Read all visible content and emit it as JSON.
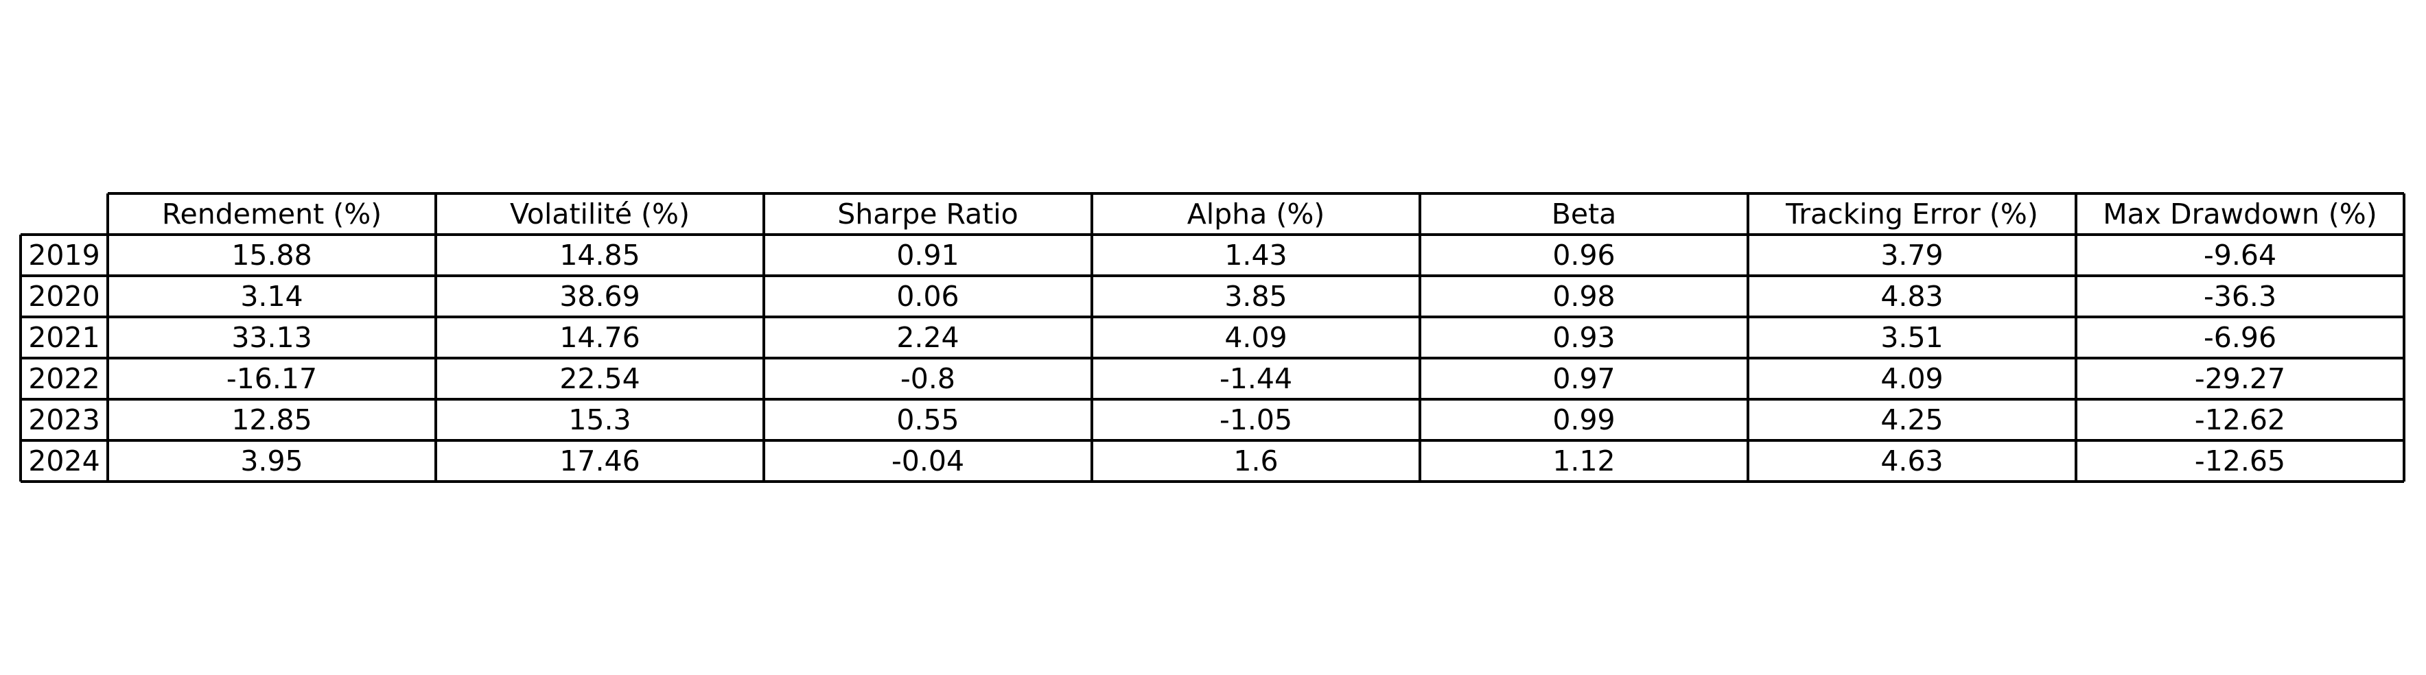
{
  "chart_data": {
    "type": "table",
    "columns": [
      "Rendement (%)",
      "Volatilité (%)",
      "Sharpe Ratio",
      "Alpha (%)",
      "Beta",
      "Tracking Error (%)",
      "Max Drawdown (%)"
    ],
    "rows": [
      {
        "label": "2019",
        "values": [
          "15.88",
          "14.85",
          "0.91",
          "1.43",
          "0.96",
          "3.79",
          "-9.64"
        ]
      },
      {
        "label": "2020",
        "values": [
          "3.14",
          "38.69",
          "0.06",
          "3.85",
          "0.98",
          "4.83",
          "-36.3"
        ]
      },
      {
        "label": "2021",
        "values": [
          "33.13",
          "14.76",
          "2.24",
          "4.09",
          "0.93",
          "3.51",
          "-6.96"
        ]
      },
      {
        "label": "2022",
        "values": [
          "-16.17",
          "22.54",
          "-0.8",
          "-1.44",
          "0.97",
          "4.09",
          "-29.27"
        ]
      },
      {
        "label": "2023",
        "values": [
          "12.85",
          "15.3",
          "0.55",
          "-1.05",
          "0.99",
          "4.25",
          "-12.62"
        ]
      },
      {
        "label": "2024",
        "values": [
          "3.95",
          "17.46",
          "-0.04",
          "1.6",
          "1.12",
          "4.63",
          "-12.65"
        ]
      }
    ]
  }
}
